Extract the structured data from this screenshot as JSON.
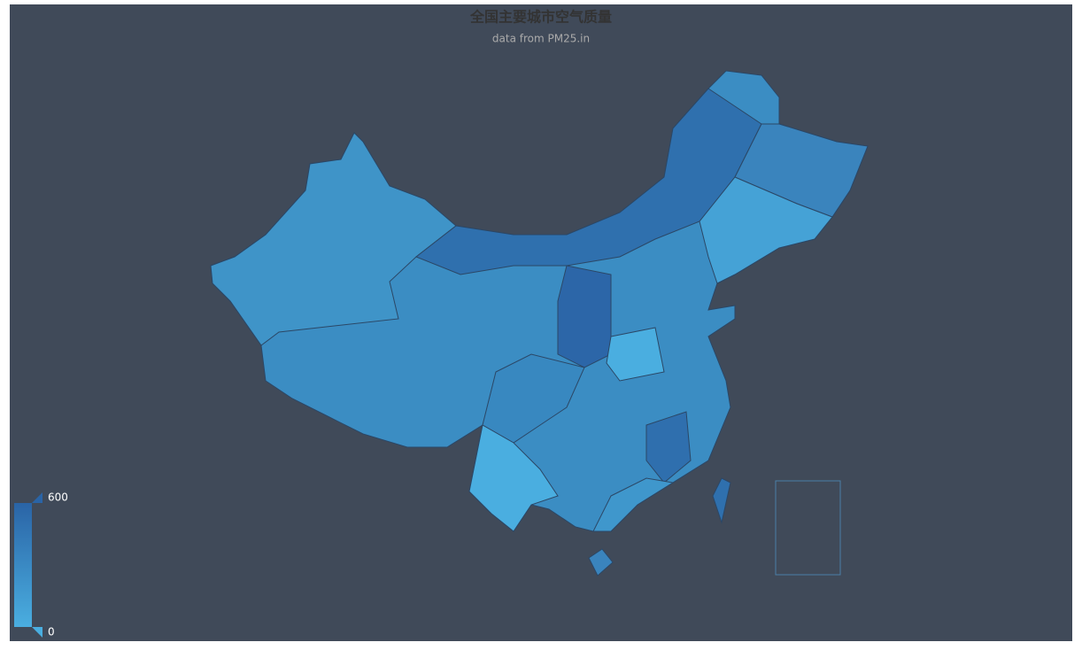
{
  "title": "全国主要城市空气质量",
  "subtitle": "data from PM25.in",
  "visual_map": {
    "min": 0,
    "max": 600
  }
}
